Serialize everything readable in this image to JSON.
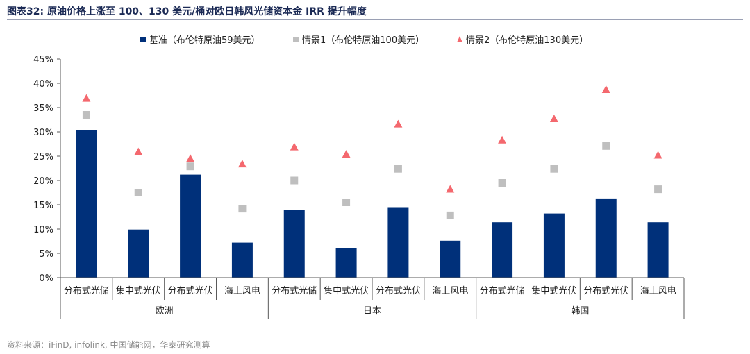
{
  "title": "图表32:  原油价格上涨至 100、130 美元/桶对欧日韩风光储资本金 IRR 提升幅度",
  "source": "资料来源：iFinD, infolink, 中国储能网，华泰研究测算",
  "colors": {
    "base": "#00307a",
    "s1": "#bfbfbf",
    "s2": "#f4686e",
    "axis": "#595959"
  },
  "chart_data": {
    "type": "bar",
    "ylim": [
      0,
      45
    ],
    "yticks": [
      "0%",
      "5%",
      "10%",
      "15%",
      "20%",
      "25%",
      "30%",
      "35%",
      "40%",
      "45%"
    ],
    "categories": [
      "分布式光储",
      "集中式光伏",
      "分布式光伏",
      "海上风电",
      "分布式光储",
      "集中式光伏",
      "分布式光伏",
      "海上风电",
      "分布式光储",
      "集中式光伏",
      "分布式光伏",
      "海上风电"
    ],
    "groups": [
      "欧洲",
      "日本",
      "韩国"
    ],
    "series": [
      {
        "name": "基准（布伦特原油59美元）",
        "type": "bar",
        "values": [
          30.3,
          9.9,
          21.2,
          7.2,
          13.9,
          6.1,
          14.5,
          7.6,
          11.4,
          13.2,
          16.3,
          11.4
        ]
      },
      {
        "name": "情景1（布伦特原油100美元）",
        "type": "square",
        "values": [
          33.5,
          17.5,
          22.9,
          14.2,
          20.0,
          15.5,
          22.4,
          12.8,
          19.5,
          22.4,
          27.1,
          18.2
        ]
      },
      {
        "name": "情景2（布伦特原油130美元）",
        "type": "triangle",
        "values": [
          36.8,
          25.8,
          24.4,
          23.3,
          26.8,
          25.3,
          31.5,
          18.1,
          28.2,
          32.6,
          38.6,
          25.1
        ]
      }
    ]
  }
}
